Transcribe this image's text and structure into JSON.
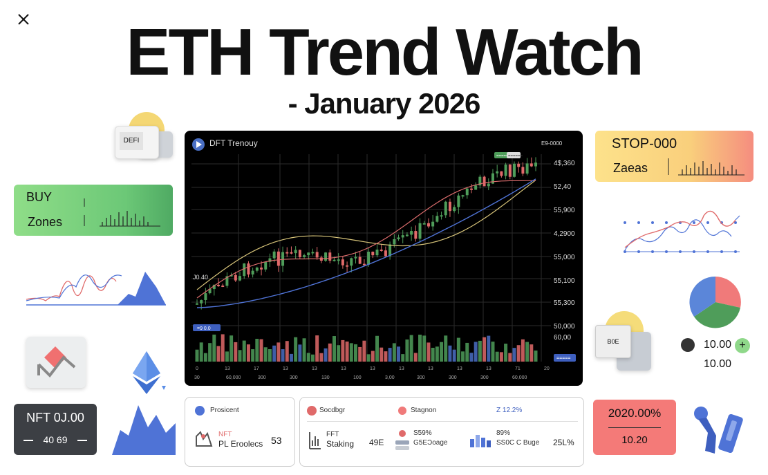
{
  "title": "ETH Trend Watch",
  "subtitle": "- January 2026",
  "stickers": {
    "defi": "DEFI",
    "buy": {
      "line1": "BUY",
      "line2": "Zones"
    },
    "stop": {
      "line1": "STOP-000",
      "line2": "Zaeas"
    },
    "nft_card": {
      "line1": "NFT 0J.00",
      "line2": "40 69"
    },
    "pct_card": {
      "line1": "2020.00%",
      "line2": "10.20"
    },
    "counter": {
      "value1": "10.00",
      "value2": "10.00",
      "plus": "+"
    },
    "bar_card": "B0E"
  },
  "chart": {
    "title": "DFT Trenouy",
    "top_right": "E9-0000",
    "legend_tags": [
      "=====",
      "======"
    ],
    "left_tag": "J0 40",
    "bottom_tag": "=9 0.0",
    "volume_tag": "=====",
    "price_labels": [
      "4$,360",
      "52,40",
      "55,900",
      "4,2900",
      "55,000",
      "55,100",
      "55,300",
      "50,000",
      "60,00"
    ],
    "x_labels_top": [
      "0",
      "13",
      "17",
      "13",
      "13",
      "13",
      "13",
      "13",
      "13",
      "13",
      "13",
      "71",
      "20"
    ],
    "x_labels_bottom": [
      "30",
      "60,000",
      "300",
      "300",
      "130",
      "100",
      "3,00",
      "300",
      "300",
      "300",
      "60,000"
    ]
  },
  "bottom_left": {
    "header": "Prosicent",
    "label1": "NFT",
    "label2": "PL Eroolecs",
    "value": "53"
  },
  "bottom_right": {
    "col1_header": "Socdbgr",
    "col2_header": "Stagnon",
    "col3_header": "Z 12.2%",
    "row_label1": "FFT",
    "row_label2": "Staking",
    "row_value": "49E",
    "mid_value1": "S59%",
    "mid_value2": "G5EƆoage",
    "right_value1": "89%",
    "right_value2": "SS0C C Buge",
    "right_pct": "25L%"
  },
  "colors": {
    "up": "#4f9d5a",
    "down": "#e06a6a",
    "ma_yellow": "#d8c57a",
    "ma_red": "#d96b6b",
    "ma_blue": "#4f73d6",
    "volume_blue": "#4a6fc4"
  }
}
